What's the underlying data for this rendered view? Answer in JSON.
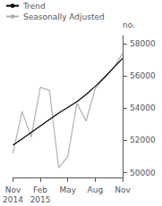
{
  "chart_data": {
    "type": "line",
    "categories": [
      "Nov\n2014",
      null,
      null,
      "Feb\n2015",
      null,
      null,
      "May",
      null,
      null,
      "Aug",
      null,
      null,
      "Nov"
    ],
    "series": [
      {
        "name": "Trend",
        "color": "#000000",
        "values": [
          51700,
          52100,
          52500,
          52900,
          53300,
          53700,
          54050,
          54400,
          54850,
          55350,
          55900,
          56500,
          57100
        ]
      },
      {
        "name": "Seasonally Adjusted",
        "color": "#b0b0b0",
        "values": [
          51200,
          53800,
          52200,
          55300,
          55100,
          50300,
          51000,
          54300,
          53200,
          55200,
          55900,
          56500,
          57400
        ]
      }
    ],
    "ylabel": "no.",
    "ylim": [
      49700,
      58500
    ],
    "yticks": [
      50000,
      52000,
      54000,
      56000,
      58000
    ],
    "grid": false,
    "legend": "upper left"
  }
}
